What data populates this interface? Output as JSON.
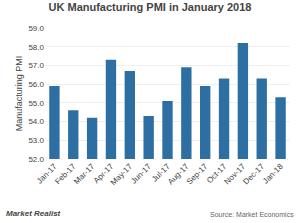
{
  "chart_data": {
    "type": "bar",
    "title": "UK Manufacturing PMI in January 2018",
    "ylabel": "Manufacturing PMI",
    "categories": [
      "Jan-17",
      "Feb-17",
      "Mar-17",
      "Apr-17",
      "May-17",
      "Jun-17",
      "Jul-17",
      "Aug-17",
      "Sep-17",
      "Oct-17",
      "Nov-17",
      "Dec-17",
      "Jan-18"
    ],
    "values": [
      55.9,
      54.6,
      54.2,
      57.3,
      56.7,
      54.3,
      55.1,
      56.9,
      55.9,
      56.3,
      58.2,
      56.3,
      55.3
    ],
    "color": "#2e6fa3",
    "ylim": [
      52.0,
      59.0
    ],
    "yticks": [
      {
        "value": 52,
        "label": "52.0"
      },
      {
        "value": 53,
        "label": "53.0"
      },
      {
        "value": 54,
        "label": "54.0"
      },
      {
        "value": 55,
        "label": "55.0"
      },
      {
        "value": 56,
        "label": "56.0"
      },
      {
        "value": 57,
        "label": "57.0"
      },
      {
        "value": 58,
        "label": "58.0"
      },
      {
        "value": 59,
        "label": "59.0"
      }
    ],
    "grid": true,
    "annotations": [
      "Market Realist",
      "Source: Market Economics"
    ]
  }
}
